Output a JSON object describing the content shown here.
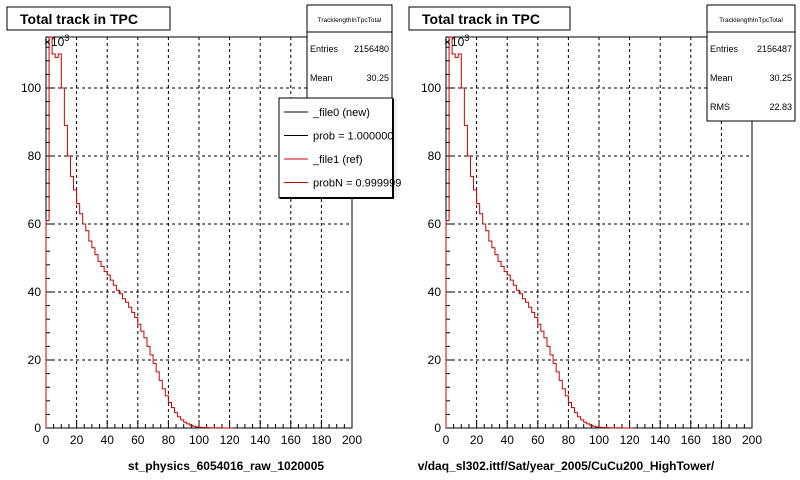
{
  "chart_data": [
    {
      "type": "histogram",
      "title": "Total track in TPC",
      "xlabel": "st_physics_6054016_raw_1020005",
      "ylabel": "",
      "y_exponent_label": "×10",
      "y_exponent": "3",
      "xlim": [
        0,
        200
      ],
      "ylim": [
        0,
        115
      ],
      "x_ticks": [
        "0",
        "20",
        "40",
        "60",
        "80",
        "100",
        "120",
        "140",
        "160",
        "180",
        "200"
      ],
      "y_ticks": [
        "0",
        "20",
        "40",
        "60",
        "80",
        "100"
      ],
      "grid": true,
      "stats": {
        "name": "TracklengthInTpcTotal",
        "rows": [
          {
            "label": "Entries",
            "value": "2156480"
          },
          {
            "label": "Mean",
            "value": "30.25"
          }
        ]
      },
      "legend": {
        "placement": "right",
        "entries": [
          {
            "label": "_file0 (new)",
            "color": "#000000"
          },
          {
            "label": "prob = 1.000000",
            "color": "#000000"
          },
          {
            "label": "_file1 (ref)",
            "color": "#cc0000"
          },
          {
            "label": "probN = 0.999999",
            "color": "#cc0000"
          }
        ]
      },
      "series": [
        {
          "name": "_file1 (ref)",
          "color": "#cc0000",
          "bin_width": 2,
          "x": [
            0,
            2,
            4,
            6,
            8,
            10,
            12,
            14,
            16,
            18,
            20,
            22,
            24,
            26,
            28,
            30,
            32,
            34,
            36,
            38,
            40,
            42,
            44,
            46,
            48,
            50,
            52,
            54,
            56,
            58,
            60,
            62,
            64,
            66,
            68,
            70,
            72,
            74,
            76,
            78,
            80,
            82,
            84,
            86,
            88,
            90,
            92,
            94,
            96,
            98,
            100,
            102,
            104,
            106,
            108,
            110,
            112,
            114,
            116,
            118,
            120
          ],
          "values": [
            61,
            115,
            110,
            109,
            110,
            100,
            89,
            80,
            74,
            70,
            66,
            63,
            60,
            58,
            55,
            53,
            51,
            49,
            47.5,
            46,
            45,
            43.5,
            42,
            40.5,
            39.5,
            38,
            37,
            35.5,
            34,
            32.5,
            30.5,
            28.5,
            26.5,
            24,
            21.5,
            19,
            16.5,
            14,
            11.5,
            9.5,
            7.5,
            6,
            4.5,
            3.3,
            2.4,
            1.7,
            1.2,
            0.8,
            0.5,
            0.3,
            0.2,
            0.15,
            0.1,
            0.07,
            0.05,
            0.03,
            0.02,
            0.01,
            0.01,
            0.005,
            0
          ]
        }
      ]
    },
    {
      "type": "histogram",
      "title": "Total track in TPC",
      "xlabel": "v/daq_sl302.ittf/Sat/year_2005/CuCu200_HighTower/",
      "ylabel": "",
      "y_exponent_label": "×10",
      "y_exponent": "3",
      "xlim": [
        0,
        200
      ],
      "ylim": [
        0,
        115
      ],
      "x_ticks": [
        "0",
        "20",
        "40",
        "60",
        "80",
        "100",
        "120",
        "140",
        "160",
        "180",
        "200"
      ],
      "y_ticks": [
        "0",
        "20",
        "40",
        "60",
        "80",
        "100"
      ],
      "grid": true,
      "stats": {
        "name": "TracklengthInTpcTotal",
        "rows": [
          {
            "label": "Entries",
            "value": "2156487"
          },
          {
            "label": "Mean",
            "value": "30.25"
          },
          {
            "label": "RMS",
            "value": "22.83"
          }
        ]
      },
      "series": [
        {
          "color": "#cc0000",
          "bin_width": 2,
          "x": [
            0,
            2,
            4,
            6,
            8,
            10,
            12,
            14,
            16,
            18,
            20,
            22,
            24,
            26,
            28,
            30,
            32,
            34,
            36,
            38,
            40,
            42,
            44,
            46,
            48,
            50,
            52,
            54,
            56,
            58,
            60,
            62,
            64,
            66,
            68,
            70,
            72,
            74,
            76,
            78,
            80,
            82,
            84,
            86,
            88,
            90,
            92,
            94,
            96,
            98,
            100,
            102,
            104,
            106,
            108,
            110,
            112,
            114,
            116,
            118,
            120
          ],
          "values": [
            61,
            115,
            110,
            109,
            110,
            100,
            89,
            80,
            74,
            70,
            66,
            63,
            60,
            58,
            55,
            53,
            51,
            49,
            47.5,
            46,
            45,
            43.5,
            42,
            40.5,
            39.5,
            38,
            37,
            35.5,
            34,
            32.5,
            30.5,
            28.5,
            26.5,
            24,
            21.5,
            19,
            16.5,
            14,
            11.5,
            9.5,
            7.5,
            6,
            4.5,
            3.3,
            2.4,
            1.7,
            1.2,
            0.8,
            0.5,
            0.3,
            0.2,
            0.15,
            0.1,
            0.07,
            0.05,
            0.03,
            0.02,
            0.01,
            0.01,
            0.005,
            0
          ]
        }
      ]
    }
  ]
}
